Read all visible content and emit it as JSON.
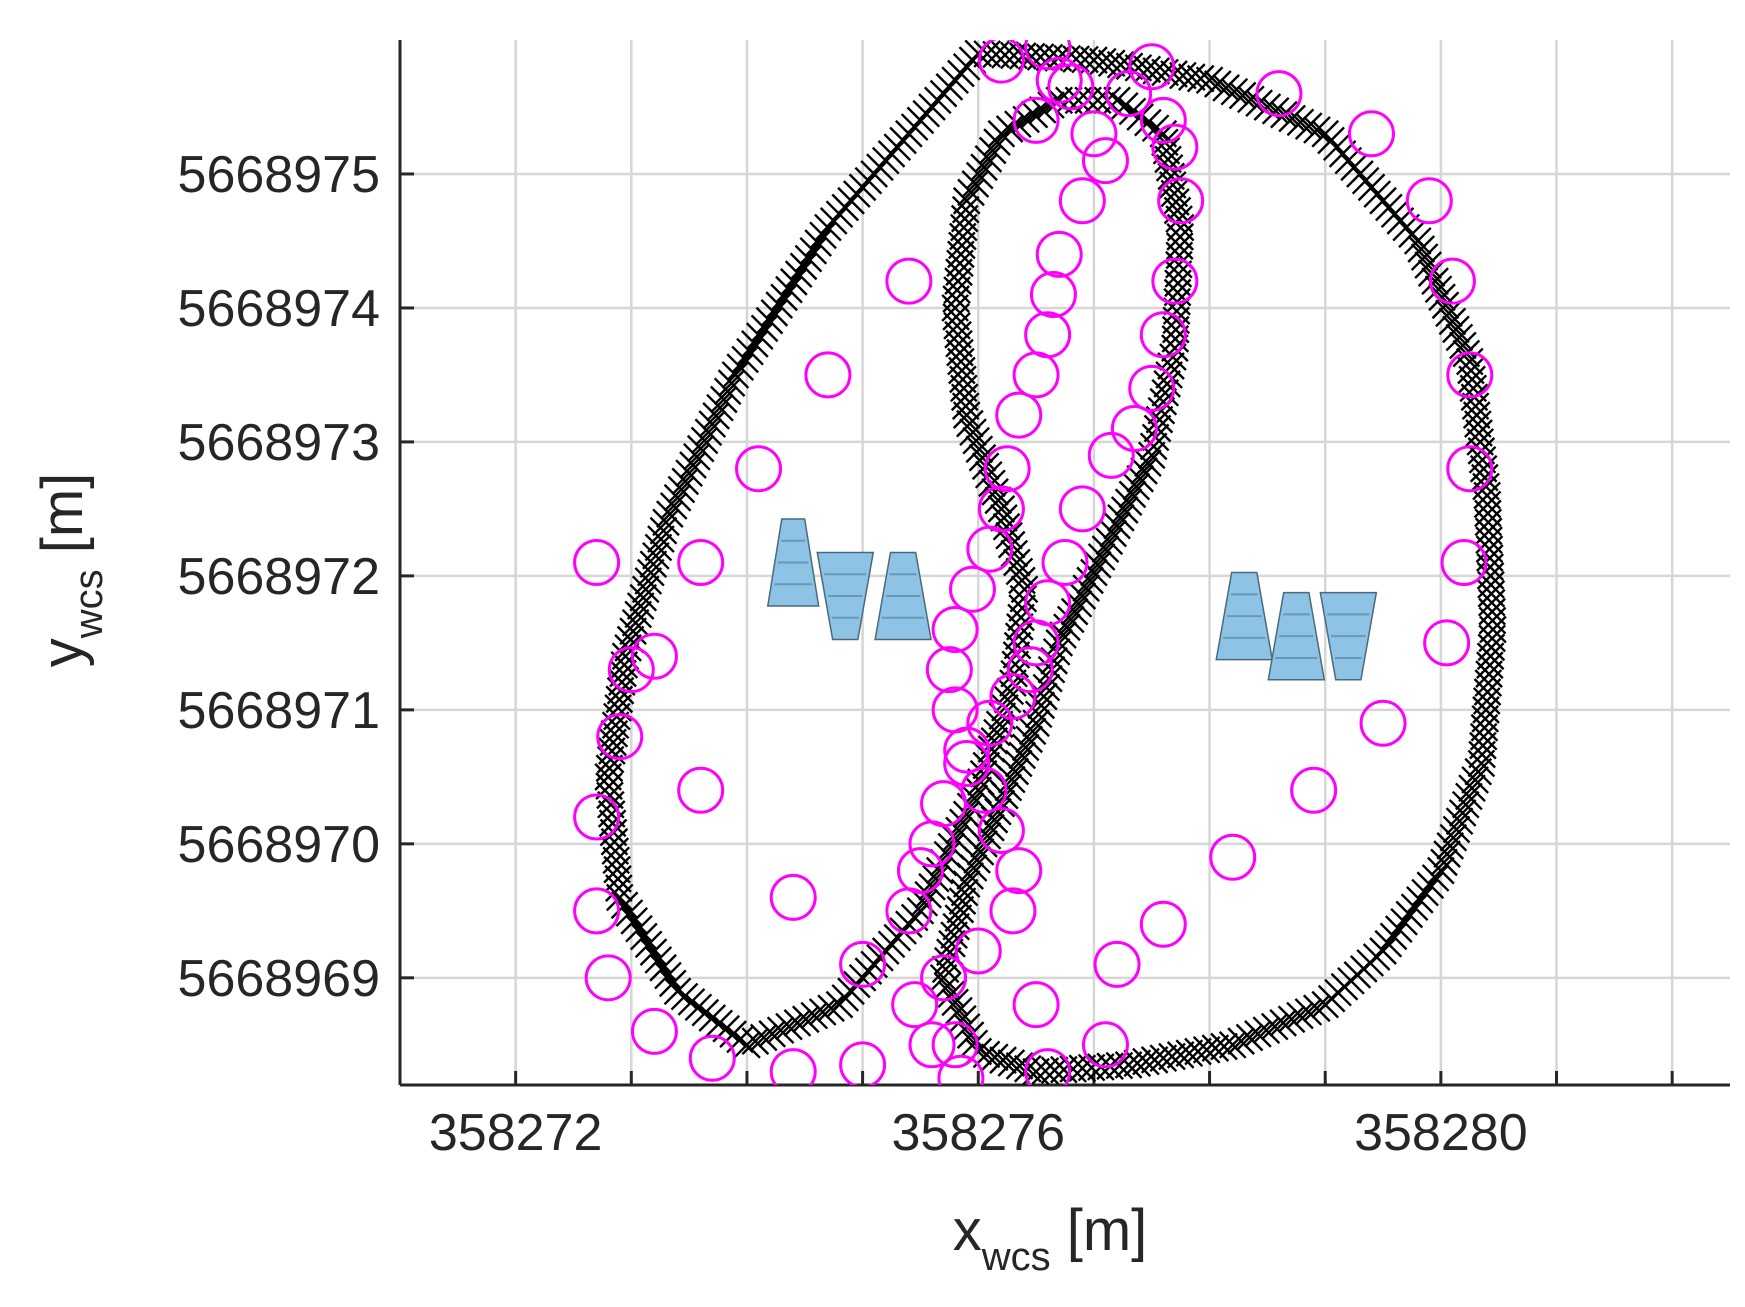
{
  "chart_data": {
    "type": "scatter",
    "xlim": [
      358271,
      358282.5
    ],
    "ylim": [
      5668968.2,
      5668976.0
    ],
    "x_ticks": [
      358272,
      358276,
      358280
    ],
    "y_ticks": [
      5668969,
      5668970,
      5668971,
      5668972,
      5668973,
      5668974,
      5668975
    ],
    "x_tick_labels": [
      "358272",
      "358276",
      "358280"
    ],
    "y_tick_labels": [
      "5668969",
      "5668970",
      "5668971",
      "5668972",
      "5668973",
      "5668974",
      "5668975"
    ],
    "xlabel": {
      "main": "x",
      "sub": "wcs",
      "unit": " [m]"
    },
    "ylabel": {
      "main": "y",
      "sub": "wcs",
      "unit": " [m]"
    },
    "grid": true,
    "colors": {
      "trajectory": "#000000",
      "keyframes": "#ff00ff",
      "cones": "#8ec3e6",
      "axis": "#262626",
      "grid": "#d6d6d6"
    },
    "series": [
      {
        "marker": "x",
        "color": "#000000",
        "x": [
          358276.0,
          358277.0,
          358278.0,
          358279.0,
          358279.8,
          358280.25,
          358280.4,
          358280.45,
          358280.35,
          358280.0,
          358279.5,
          358279.0,
          358278.2,
          358277.3,
          358276.5,
          358276.0,
          358275.7,
          358275.9,
          358276.2,
          358276.5,
          358276.7,
          358277.1,
          358277.5,
          358277.7,
          358277.75,
          358277.6,
          358277.2,
          358276.7,
          358276.2,
          358275.9,
          358275.8,
          358275.9,
          358276.2,
          358276.4,
          358276.3,
          358276.0,
          358275.5,
          358274.8,
          358274.0,
          358273.4,
          358272.9,
          358272.8,
          358272.95,
          358273.3,
          358273.9,
          358274.7,
          358275.5,
          358276.0
        ],
        "y": [
          5668975.9,
          5668975.85,
          5668975.7,
          5668975.3,
          5668974.5,
          5668973.6,
          5668972.6,
          5668971.6,
          5668970.6,
          5668969.8,
          5668969.2,
          5668968.8,
          5668968.5,
          5668968.35,
          5668968.3,
          5668968.45,
          5668969.0,
          5668969.7,
          5668970.3,
          5668970.9,
          5668971.5,
          5668972.2,
          5668972.9,
          5668973.7,
          5668974.6,
          5668975.3,
          5668975.55,
          5668975.55,
          5668975.3,
          5668974.8,
          5668974.0,
          5668973.2,
          5668972.5,
          5668971.9,
          5668971.2,
          5668970.4,
          5668969.5,
          5668968.8,
          5668968.5,
          5668968.9,
          5668969.6,
          5668970.5,
          5668971.4,
          5668972.4,
          5668973.5,
          5668974.6,
          5668975.4,
          5668975.9
        ]
      },
      {
        "marker": "o",
        "color": "#ff00ff",
        "x": [
          358276.2,
          358276.6,
          358276.7,
          358276.5,
          358276.8,
          358277.0,
          358277.3,
          358277.5,
          358277.7,
          358277.75,
          358277.7,
          358277.6,
          358277.5,
          358277.35,
          358277.15,
          358276.9,
          358276.75,
          358276.6,
          358276.5,
          358276.45,
          358276.3,
          358276.1,
          358275.9,
          358275.7,
          358275.6,
          358275.5,
          358275.4,
          358275.7,
          358276.0,
          358276.3,
          358276.35,
          358276.2,
          358276.05,
          358275.9,
          358275.8,
          358275.75,
          358275.8,
          358275.95,
          358276.1,
          358276.2,
          358276.25,
          358276.35,
          358276.5,
          358276.6,
          358276.65,
          358276.7,
          358276.9,
          358277.1,
          358277.6,
          358278.6,
          358279.4,
          358279.9,
          358280.1,
          358280.25,
          358280.25,
          358280.2,
          358280.05,
          358279.5,
          358278.9,
          358278.2,
          358277.6,
          358277.2,
          358276.5,
          358275.8,
          358275.0,
          358274.4,
          358273.7,
          358273.2,
          358272.8,
          358272.7,
          358272.7,
          358272.9,
          358273.2,
          358273.6,
          358274.1,
          358274.7,
          358275.4,
          358276.6,
          358277.1,
          358275.85,
          358275.6,
          358275.45,
          358275.0,
          358274.4,
          358273.6,
          358273.0,
          358272.7
        ],
        "y": [
          5668975.85,
          5668975.95,
          5668975.7,
          5668975.4,
          5668975.65,
          5668975.3,
          5668975.6,
          5668975.8,
          5668975.2,
          5668974.8,
          5668974.2,
          5668973.8,
          5668973.4,
          5668973.1,
          5668972.9,
          5668972.5,
          5668972.1,
          5668971.8,
          5668971.5,
          5668971.3,
          5668971.1,
          5668970.9,
          5668970.6,
          5668970.3,
          5668970.0,
          5668969.8,
          5668969.5,
          5668969.0,
          5668969.2,
          5668969.5,
          5668969.8,
          5668970.1,
          5668970.4,
          5668970.7,
          5668971.0,
          5668971.3,
          5668971.6,
          5668971.9,
          5668972.2,
          5668972.5,
          5668972.8,
          5668973.2,
          5668973.5,
          5668973.8,
          5668974.1,
          5668974.4,
          5668974.8,
          5668975.1,
          5668975.4,
          5668975.6,
          5668975.3,
          5668974.8,
          5668974.2,
          5668973.5,
          5668972.8,
          5668972.1,
          5668971.5,
          5668970.9,
          5668970.4,
          5668969.9,
          5668969.4,
          5668969.1,
          5668968.8,
          5668968.5,
          5668968.35,
          5668968.3,
          5668968.4,
          5668968.6,
          5668969.0,
          5668969.5,
          5668970.2,
          5668970.8,
          5668971.4,
          5668972.1,
          5668972.8,
          5668973.5,
          5668974.2,
          5668968.3,
          5668968.5,
          5668968.25,
          5668968.5,
          5668968.8,
          5668969.1,
          5668969.6,
          5668970.4,
          5668971.3,
          5668972.1
        ]
      }
    ],
    "cones": [
      {
        "x": 358274.4,
        "y": 5668972.1,
        "h": 0.65,
        "w": 0.2,
        "dir": "up"
      },
      {
        "x": 358274.85,
        "y": 5668971.85,
        "h": 0.65,
        "w": 0.22,
        "dir": "down"
      },
      {
        "x": 358275.35,
        "y": 5668971.85,
        "h": 0.65,
        "w": 0.22,
        "dir": "up"
      },
      {
        "x": 358278.3,
        "y": 5668971.7,
        "h": 0.65,
        "w": 0.22,
        "dir": "up"
      },
      {
        "x": 358278.75,
        "y": 5668971.55,
        "h": 0.65,
        "w": 0.22,
        "dir": "up"
      },
      {
        "x": 358279.2,
        "y": 5668971.55,
        "h": 0.65,
        "w": 0.22,
        "dir": "down"
      }
    ]
  }
}
